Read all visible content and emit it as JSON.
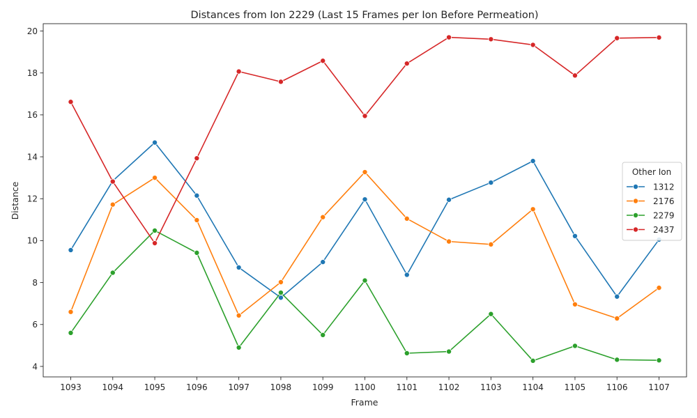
{
  "chart_data": {
    "type": "line",
    "title": "Distances from Ion 2229 (Last 15 Frames per Ion Before Permeation)",
    "xlabel": "Frame",
    "ylabel": "Distance",
    "x": [
      1093,
      1094,
      1095,
      1096,
      1097,
      1098,
      1099,
      1100,
      1101,
      1102,
      1103,
      1104,
      1105,
      1106,
      1107
    ],
    "yticks": [
      4,
      6,
      8,
      10,
      12,
      14,
      16,
      18,
      20
    ],
    "ylim": [
      3.5,
      20.35
    ],
    "grid": false,
    "legend": {
      "title": "Other Ion",
      "placement": "center-right"
    },
    "series": [
      {
        "name": "1312",
        "color": "#1f77b4",
        "values": [
          9.55,
          12.85,
          14.68,
          12.15,
          8.72,
          7.28,
          8.98,
          11.97,
          8.37,
          11.95,
          12.77,
          13.8,
          10.22,
          7.33,
          10.05
        ]
      },
      {
        "name": "2176",
        "color": "#ff7f0e",
        "values": [
          6.6,
          11.72,
          13.0,
          10.98,
          6.43,
          8.02,
          11.12,
          13.27,
          11.05,
          9.96,
          9.82,
          11.5,
          6.96,
          6.29,
          7.75
        ]
      },
      {
        "name": "2279",
        "color": "#2ca02c",
        "values": [
          5.6,
          8.47,
          10.48,
          9.42,
          4.9,
          7.52,
          5.5,
          8.1,
          4.63,
          4.71,
          6.5,
          4.27,
          4.98,
          4.32,
          4.29
        ]
      },
      {
        "name": "2437",
        "color": "#d62728",
        "values": [
          16.62,
          12.82,
          9.88,
          13.93,
          18.07,
          17.58,
          18.58,
          15.95,
          18.45,
          19.7,
          19.61,
          19.34,
          17.88,
          19.66,
          19.69
        ]
      }
    ]
  }
}
